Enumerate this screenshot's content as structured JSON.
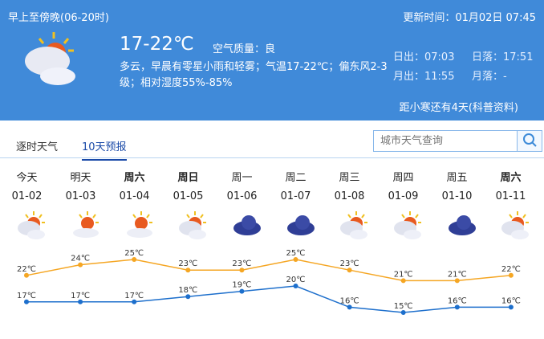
{
  "header": {
    "period": "早上至傍晚(06-20时)",
    "update_time": "更新时间：01月02日 07:45",
    "temperature": "17-22℃",
    "air_quality": "空气质量：良",
    "description": "多云，早晨有零星小雨和轻雾；气温17-22℃；偏东风2-3级；相对湿度55%-85%",
    "sunrise": "日出：07:03",
    "sunset": "日落：17:51",
    "moonrise": "月出：11:55",
    "moonset": "月落：-",
    "tip": "距小寒还有4天(科普资料)",
    "icon": "partly-cloudy-icon"
  },
  "tabs": [
    {
      "label": "逐时天气"
    },
    {
      "label": "10天预报",
      "active": true
    }
  ],
  "search": {
    "placeholder": "城市天气查询"
  },
  "colors": {
    "header_bg": "#408ad9",
    "high_line": "#f5a623",
    "low_line": "#1d6fcc"
  },
  "forecast": [
    {
      "day": "今天",
      "date": "01-02",
      "icon": "partly-cloudy",
      "bold": false,
      "high": "22℃",
      "low": "17℃"
    },
    {
      "day": "明天",
      "date": "01-03",
      "icon": "sunny-cloudy",
      "bold": false,
      "high": "24℃",
      "low": "17℃"
    },
    {
      "day": "周六",
      "date": "01-04",
      "icon": "sunny-cloudy",
      "bold": true,
      "high": "25℃",
      "low": "17℃"
    },
    {
      "day": "周日",
      "date": "01-05",
      "icon": "partly-cloudy",
      "bold": true,
      "high": "23℃",
      "low": "18℃"
    },
    {
      "day": "周一",
      "date": "01-06",
      "icon": "overcast",
      "bold": false,
      "high": "23℃",
      "low": "19℃"
    },
    {
      "day": "周二",
      "date": "01-07",
      "icon": "overcast",
      "bold": false,
      "high": "25℃",
      "low": "20℃"
    },
    {
      "day": "周三",
      "date": "01-08",
      "icon": "partly-cloudy",
      "bold": false,
      "high": "23℃",
      "low": "16℃"
    },
    {
      "day": "周四",
      "date": "01-09",
      "icon": "partly-cloudy",
      "bold": false,
      "high": "21℃",
      "low": "15℃"
    },
    {
      "day": "周五",
      "date": "01-10",
      "icon": "overcast",
      "bold": false,
      "high": "21℃",
      "low": "16℃"
    },
    {
      "day": "周六",
      "date": "01-11",
      "icon": "partly-cloudy",
      "bold": true,
      "high": "22℃",
      "low": "16℃"
    }
  ],
  "chart_data": {
    "type": "line",
    "categories": [
      "01-02",
      "01-03",
      "01-04",
      "01-05",
      "01-06",
      "01-07",
      "01-08",
      "01-09",
      "01-10",
      "01-11"
    ],
    "series": [
      {
        "values": [
          22,
          24,
          25,
          23,
          23,
          25,
          23,
          21,
          21,
          22
        ]
      },
      {
        "values": [
          17,
          17,
          17,
          18,
          19,
          20,
          16,
          15,
          16,
          16
        ]
      }
    ]
  }
}
